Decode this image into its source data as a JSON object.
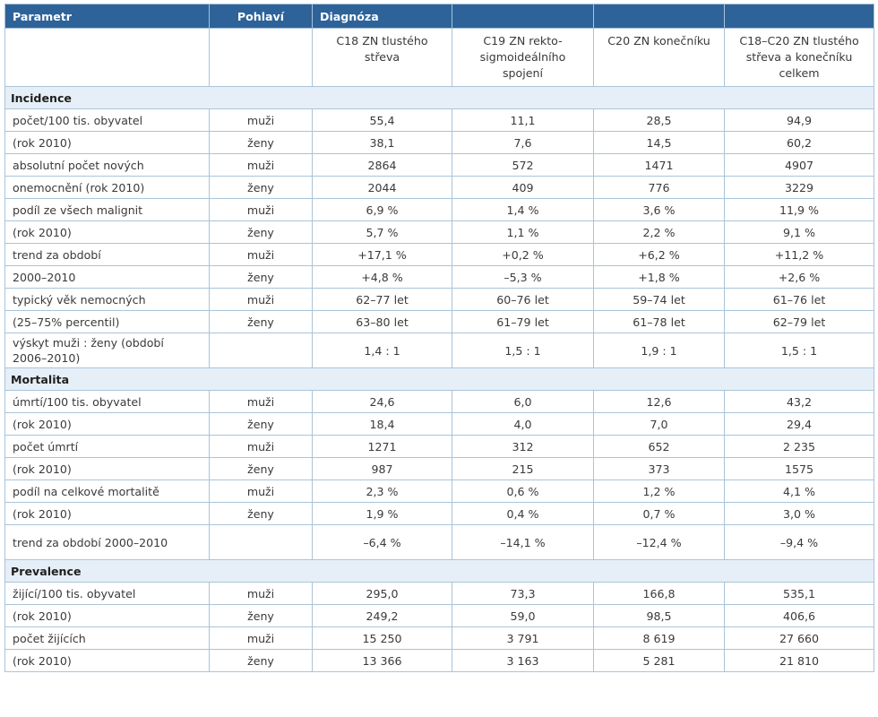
{
  "header": {
    "col_param": "Parametr",
    "col_sex": "Pohlaví",
    "col_diag": "Diagnóza",
    "diagnoses": [
      "C18 ZN tlustého střeva",
      "C19 ZN rekto-sigmoideálního spojení",
      "C20 ZN konečníku",
      "C18–C20 ZN tlustého střeva a konečníku celkem"
    ]
  },
  "sections": [
    {
      "title": "Incidence",
      "rows": [
        {
          "param": "počet/100 tis. obyvatel",
          "sex": "muži",
          "values": [
            "55,4",
            "11,1",
            "28,5",
            "94,9"
          ]
        },
        {
          "param": "(rok 2010)",
          "sex": "ženy",
          "values": [
            "38,1",
            "7,6",
            "14,5",
            "60,2"
          ]
        },
        {
          "param": "absolutní počet nových",
          "sex": "muži",
          "values": [
            "2864",
            "572",
            "1471",
            "4907"
          ]
        },
        {
          "param": "onemocnění (rok 2010)",
          "sex": "ženy",
          "values": [
            "2044",
            "409",
            "776",
            "3229"
          ]
        },
        {
          "param": "podíl ze všech malignit",
          "sex": "muži",
          "values": [
            "6,9 %",
            "1,4 %",
            "3,6 %",
            "11,9 %"
          ]
        },
        {
          "param": "(rok 2010)",
          "sex": "ženy",
          "values": [
            "5,7 %",
            "1,1 %",
            "2,2 %",
            "9,1 %"
          ]
        },
        {
          "param": "trend za období",
          "sex": "muži",
          "values": [
            "+17,1 %",
            "+0,2 %",
            "+6,2 %",
            "+11,2 %"
          ]
        },
        {
          "param": "2000–2010",
          "sex": "ženy",
          "values": [
            "+4,8 %",
            "–5,3 %",
            "+1,8 %",
            "+2,6 %"
          ]
        },
        {
          "param": "typický věk nemocných",
          "sex": "muži",
          "values": [
            "62–77 let",
            "60–76 let",
            "59–74 let",
            "61–76 let"
          ]
        },
        {
          "param": "(25–75% percentil)",
          "sex": "ženy",
          "values": [
            "63–80 let",
            "61–79 let",
            "61–78 let",
            "62–79 let"
          ]
        },
        {
          "param": "výskyt muži : ženy (období 2006–2010)",
          "sex": "",
          "values": [
            "1,4 : 1",
            "1,5 : 1",
            "1,9 : 1",
            "1,5 : 1"
          ],
          "tall": true
        }
      ]
    },
    {
      "title": "Mortalita",
      "rows": [
        {
          "param": "úmrtí/100 tis. obyvatel",
          "sex": "muži",
          "values": [
            "24,6",
            "6,0",
            "12,6",
            "43,2"
          ]
        },
        {
          "param": "(rok 2010)",
          "sex": "ženy",
          "values": [
            "18,4",
            "4,0",
            "7,0",
            "29,4"
          ]
        },
        {
          "param": "počet úmrtí",
          "sex": "muži",
          "values": [
            "1271",
            "312",
            "652",
            "2 235"
          ]
        },
        {
          "param": "(rok 2010)",
          "sex": "ženy",
          "values": [
            "987",
            "215",
            "373",
            "1575"
          ]
        },
        {
          "param": "podíl na celkové mortalitě",
          "sex": "muži",
          "values": [
            "2,3 %",
            "0,6 %",
            "1,2 %",
            "4,1 %"
          ]
        },
        {
          "param": "(rok 2010)",
          "sex": "ženy",
          "values": [
            "1,9 %",
            "0,4 %",
            "0,7 %",
            "3,0 %"
          ]
        },
        {
          "param": "trend za období 2000–2010",
          "sex": "",
          "values": [
            "–6,4 %",
            "–14,1 %",
            "–12,4 %",
            "–9,4 %"
          ],
          "tall": true
        }
      ]
    },
    {
      "title": "Prevalence",
      "rows": [
        {
          "param": "žijící/100 tis. obyvatel",
          "sex": "muži",
          "values": [
            "295,0",
            "73,3",
            "166,8",
            "535,1"
          ]
        },
        {
          "param": "(rok 2010)",
          "sex": "ženy",
          "values": [
            "249,2",
            "59,0",
            "98,5",
            "406,6"
          ]
        },
        {
          "param": "počet žijících",
          "sex": "muži",
          "values": [
            "15 250",
            "3 791",
            "8 619",
            "27 660"
          ]
        },
        {
          "param": "(rok 2010)",
          "sex": "ženy",
          "values": [
            "13 366",
            "3 163",
            "5 281",
            "21 810"
          ]
        }
      ]
    }
  ]
}
